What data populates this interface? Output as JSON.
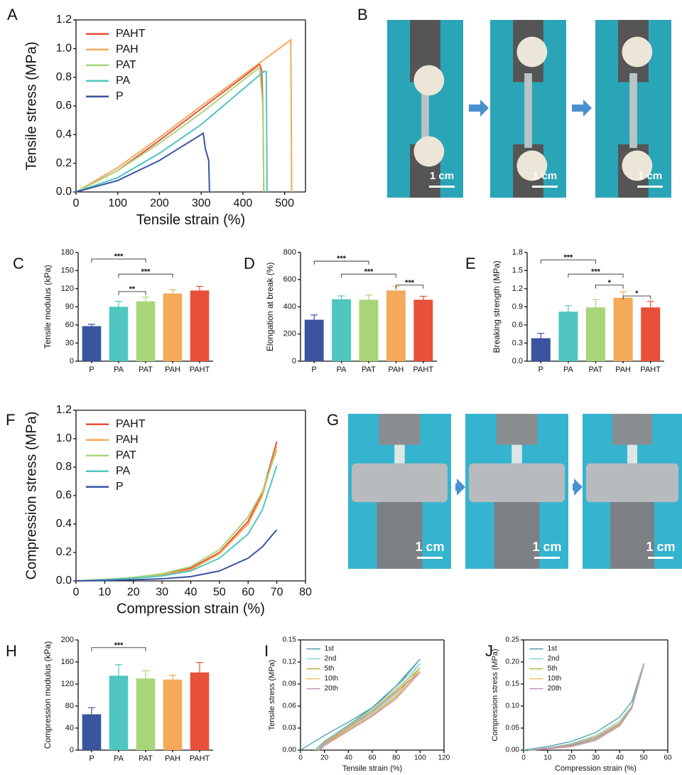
{
  "panel_labels": [
    "A",
    "B",
    "C",
    "D",
    "E",
    "F",
    "G",
    "H",
    "I",
    "J"
  ],
  "photo_scale_labels": {
    "B": [
      "1 cm",
      "1 cm",
      "1 cm"
    ],
    "G": [
      "1 cm",
      "1 cm",
      "1 cm"
    ]
  },
  "chart_data": [
    {
      "type": "line",
      "xlabel": "Tensile strain (%)",
      "ylabel": "Tensile stress (MPa)",
      "frame": "box",
      "legend": "upper left",
      "xlim": [
        0,
        550
      ],
      "xticks": [
        0,
        100,
        200,
        300,
        400,
        500
      ],
      "ylim": [
        0,
        1.2
      ],
      "yticks": [
        {
          "value": 0,
          "label": "0.0"
        },
        0.2,
        0.4,
        0.6,
        0.8,
        {
          "value": 1,
          "label": "1.0"
        },
        1.2
      ],
      "series": [
        {
          "name": "PAHT",
          "color": "#e8503a",
          "x": [
            0,
            100,
            200,
            300,
            400,
            440,
            445,
            448,
            450
          ],
          "values": [
            0,
            0.15,
            0.36,
            0.58,
            0.8,
            0.89,
            0.85,
            0.6,
            0
          ]
        },
        {
          "name": "PAH",
          "color": "#f5a95a",
          "x": [
            0,
            100,
            200,
            300,
            440,
            515,
            517
          ],
          "values": [
            0,
            0.17,
            0.38,
            0.6,
            0.9,
            1.06,
            0
          ]
        },
        {
          "name": "PAT",
          "color": "#a8d57a",
          "x": [
            0,
            100,
            200,
            300,
            440,
            448,
            450
          ],
          "values": [
            0,
            0.15,
            0.34,
            0.55,
            0.87,
            0.6,
            0
          ]
        },
        {
          "name": "PA",
          "color": "#4fc6c0",
          "x": [
            0,
            100,
            200,
            300,
            450,
            456,
            458
          ],
          "values": [
            0,
            0.1,
            0.27,
            0.47,
            0.84,
            0.84,
            0
          ]
        },
        {
          "name": "P",
          "color": "#3a54a0",
          "x": [
            0,
            100,
            200,
            300,
            305,
            310,
            318,
            320
          ],
          "values": [
            0,
            0.08,
            0.22,
            0.4,
            0.41,
            0.3,
            0.22,
            0
          ]
        }
      ]
    },
    {
      "type": "bar",
      "ylabel": "Tensile modulus (kPa)",
      "frame": "open",
      "categories": [
        "P",
        "PA",
        "PAT",
        "PAH",
        "PAHT"
      ],
      "values": [
        58,
        90,
        99,
        112,
        117
      ],
      "errors": [
        3,
        9,
        7,
        6,
        7
      ],
      "colors": [
        "#3a54a0",
        "#4fc6c0",
        "#a8d57a",
        "#f5a95a",
        "#e8503a"
      ],
      "ylim": [
        0,
        180
      ],
      "yticks": [
        0,
        30,
        60,
        90,
        120,
        150,
        180
      ],
      "annotations": [
        "***",
        "***",
        "**"
      ]
    },
    {
      "type": "bar",
      "ylabel": "Elongation at break (%)",
      "frame": "open",
      "categories": [
        "P",
        "PA",
        "PAT",
        "PAH",
        "PAHT"
      ],
      "values": [
        305,
        455,
        452,
        520,
        452
      ],
      "errors": [
        35,
        25,
        35,
        30,
        25
      ],
      "colors": [
        "#3a54a0",
        "#4fc6c0",
        "#a8d57a",
        "#f5a95a",
        "#e8503a"
      ],
      "ylim": [
        0,
        800
      ],
      "yticks": [
        0,
        200,
        400,
        600,
        800
      ],
      "annotations": [
        "***",
        "***",
        "***"
      ]
    },
    {
      "type": "bar",
      "ylabel": "Breaking strength (MPa)",
      "frame": "open",
      "categories": [
        "P",
        "PA",
        "PAT",
        "PAH",
        "PAHT"
      ],
      "values": [
        0.38,
        0.82,
        0.89,
        1.05,
        0.89
      ],
      "errors": [
        0.08,
        0.1,
        0.13,
        0.1,
        0.1
      ],
      "colors": [
        "#3a54a0",
        "#4fc6c0",
        "#a8d57a",
        "#f5a95a",
        "#e8503a"
      ],
      "ylim": [
        0,
        1.8
      ],
      "yticks": [
        {
          "value": 0,
          "label": "0.0"
        },
        0.3,
        0.6,
        0.9,
        1.2,
        1.5,
        1.8
      ],
      "annotations": [
        "***",
        "***",
        "*",
        "*"
      ]
    },
    {
      "type": "line",
      "xlabel": "Compression strain (%)",
      "ylabel": "Compression stress (MPa)",
      "frame": "box",
      "legend": "upper left",
      "xlim": [
        0,
        80
      ],
      "xticks": [
        0,
        10,
        20,
        30,
        40,
        50,
        60,
        70,
        80
      ],
      "ylim": [
        0,
        1.2
      ],
      "yticks": [
        {
          "value": 0,
          "label": "0.0"
        },
        0.2,
        0.4,
        0.6,
        0.8,
        {
          "value": 1,
          "label": "1.0"
        },
        1.2
      ],
      "x": [
        0,
        10,
        20,
        30,
        40,
        50,
        60,
        65,
        70
      ],
      "series": [
        {
          "name": "PAHT",
          "color": "#e8503a",
          "values": [
            0,
            0.01,
            0.02,
            0.04,
            0.09,
            0.2,
            0.42,
            0.62,
            0.98
          ]
        },
        {
          "name": "PAH",
          "color": "#f5a95a",
          "values": [
            0,
            0.01,
            0.02,
            0.04,
            0.08,
            0.19,
            0.4,
            0.6,
            0.95
          ]
        },
        {
          "name": "PAT",
          "color": "#a8d57a",
          "values": [
            0,
            0.01,
            0.025,
            0.05,
            0.1,
            0.22,
            0.45,
            0.63,
            0.92
          ]
        },
        {
          "name": "PA",
          "color": "#4fc6c0",
          "values": [
            0,
            0.008,
            0.018,
            0.035,
            0.07,
            0.16,
            0.33,
            0.5,
            0.81
          ]
        },
        {
          "name": "P",
          "color": "#3a54a0",
          "values": [
            0,
            0.003,
            0.008,
            0.015,
            0.03,
            0.07,
            0.16,
            0.24,
            0.36
          ]
        }
      ]
    },
    {
      "type": "bar",
      "ylabel": "Compression modulus (kPa)",
      "frame": "open",
      "categories": [
        "P",
        "PA",
        "PAT",
        "PAH",
        "PAHT"
      ],
      "values": [
        65,
        135,
        130,
        128,
        141
      ],
      "errors": [
        12,
        20,
        14,
        8,
        18
      ],
      "colors": [
        "#3a54a0",
        "#4fc6c0",
        "#a8d57a",
        "#f5a95a",
        "#e8503a"
      ],
      "ylim": [
        0,
        200
      ],
      "yticks": [
        0,
        40,
        80,
        120,
        160,
        200
      ],
      "annotations": [
        "***"
      ]
    },
    {
      "type": "line",
      "xlabel": "Tensile strain (%)",
      "ylabel": "Tensile stress (MPa)",
      "frame": "box",
      "legend": "upper left",
      "xlim": [
        0,
        120
      ],
      "xticks": [
        0,
        20,
        40,
        60,
        80,
        100,
        120
      ],
      "ylim": [
        0,
        0.15
      ],
      "yticks": [
        {
          "value": 0,
          "label": "0.00"
        },
        {
          "value": 0.03,
          "label": "0.03"
        },
        {
          "value": 0.06,
          "label": "0.06"
        },
        {
          "value": 0.09,
          "label": "0.09"
        },
        {
          "value": 0.12,
          "label": "0.12"
        },
        {
          "value": 0.15,
          "label": "0.15"
        }
      ],
      "series": [
        {
          "name": "1st",
          "color": "#4a9fa8",
          "x": [
            0,
            20,
            40,
            60,
            80,
            100,
            80,
            60,
            40,
            20,
            12
          ],
          "values": [
            0,
            0.02,
            0.038,
            0.058,
            0.085,
            0.124,
            0.088,
            0.058,
            0.034,
            0.012,
            0
          ]
        },
        {
          "name": "2nd",
          "color": "#8fd0d8",
          "x": [
            12,
            20,
            40,
            60,
            80,
            100,
            80,
            60,
            40,
            20,
            14
          ],
          "values": [
            0,
            0.01,
            0.03,
            0.05,
            0.077,
            0.118,
            0.085,
            0.056,
            0.033,
            0.011,
            0
          ]
        },
        {
          "name": "5th",
          "color": "#b5b83c",
          "x": [
            14,
            20,
            40,
            60,
            80,
            100,
            80,
            60,
            40,
            20,
            15
          ],
          "values": [
            0,
            0.008,
            0.028,
            0.048,
            0.074,
            0.112,
            0.082,
            0.054,
            0.032,
            0.01,
            0
          ]
        },
        {
          "name": "10th",
          "color": "#f0c060",
          "x": [
            15,
            20,
            40,
            60,
            80,
            100,
            80,
            60,
            40,
            20,
            16
          ],
          "values": [
            0,
            0.007,
            0.027,
            0.047,
            0.072,
            0.108,
            0.08,
            0.053,
            0.031,
            0.009,
            0
          ]
        },
        {
          "name": "20th",
          "color": "#c58fb5",
          "x": [
            16,
            20,
            40,
            60,
            80,
            100,
            80,
            60,
            40,
            20,
            16
          ],
          "values": [
            0,
            0.006,
            0.026,
            0.046,
            0.07,
            0.106,
            0.079,
            0.052,
            0.03,
            0.009,
            0
          ]
        }
      ]
    },
    {
      "type": "line",
      "xlabel": "Compression strain (%)",
      "ylabel": "Compression stress (MPa)",
      "frame": "box",
      "legend": "upper left",
      "xlim": [
        0,
        60
      ],
      "xticks": [
        0,
        10,
        20,
        30,
        40,
        50,
        60
      ],
      "ylim": [
        0,
        0.25
      ],
      "yticks": [
        {
          "value": 0,
          "label": "0.00"
        },
        {
          "value": 0.05,
          "label": "0.05"
        },
        {
          "value": 0.1,
          "label": "0.10"
        },
        {
          "value": 0.15,
          "label": "0.15"
        },
        {
          "value": 0.2,
          "label": "0.20"
        },
        {
          "value": 0.25,
          "label": "0.25"
        }
      ],
      "series": [
        {
          "name": "1st",
          "color": "#4a9fa8",
          "x": [
            0,
            10,
            20,
            30,
            40,
            45,
            50,
            45,
            40,
            30,
            20,
            10,
            2
          ],
          "values": [
            0,
            0.008,
            0.02,
            0.04,
            0.075,
            0.11,
            0.197,
            0.1,
            0.06,
            0.025,
            0.01,
            0.003,
            0
          ]
        },
        {
          "name": "2nd",
          "color": "#8fd0d8",
          "x": [
            2,
            10,
            20,
            30,
            40,
            45,
            50,
            45,
            40,
            30,
            20,
            10,
            3
          ],
          "values": [
            0,
            0.005,
            0.015,
            0.033,
            0.066,
            0.1,
            0.195,
            0.098,
            0.058,
            0.024,
            0.009,
            0.003,
            0
          ]
        },
        {
          "name": "5th",
          "color": "#b5b83c",
          "x": [
            3,
            10,
            20,
            30,
            40,
            45,
            50,
            45,
            40,
            30,
            20,
            10,
            3
          ],
          "values": [
            0,
            0.004,
            0.013,
            0.03,
            0.062,
            0.097,
            0.194,
            0.097,
            0.057,
            0.023,
            0.009,
            0.003,
            0
          ]
        },
        {
          "name": "10th",
          "color": "#f0c060",
          "x": [
            3,
            10,
            20,
            30,
            40,
            45,
            50,
            45,
            40,
            30,
            20,
            10,
            3
          ],
          "values": [
            0,
            0.004,
            0.012,
            0.029,
            0.06,
            0.095,
            0.193,
            0.096,
            0.056,
            0.023,
            0.008,
            0.003,
            0
          ]
        },
        {
          "name": "20th",
          "color": "#c58fb5",
          "x": [
            3,
            10,
            20,
            30,
            40,
            45,
            50,
            45,
            40,
            30,
            20,
            10,
            3
          ],
          "values": [
            0,
            0.004,
            0.012,
            0.028,
            0.059,
            0.094,
            0.192,
            0.095,
            0.055,
            0.022,
            0.008,
            0.003,
            0
          ]
        }
      ]
    }
  ]
}
